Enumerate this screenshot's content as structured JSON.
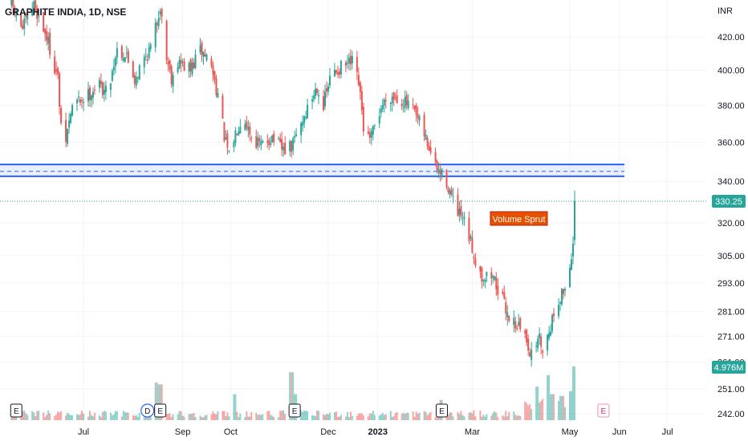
{
  "chart_data": {
    "type": "candlestick",
    "title": "GRAPHITE INDIA, 1D, NSE",
    "currency": "INR",
    "y_ticks": [
      420.0,
      400.0,
      380.0,
      360.0,
      340.0,
      320.0,
      305.0,
      293.0,
      281.0,
      271.0,
      261.0,
      251.0,
      242.0
    ],
    "x_ticks": [
      {
        "label": "Jul",
        "date": "2022-07-01"
      },
      {
        "label": "Sep",
        "date": "2022-09-01"
      },
      {
        "label": "Oct",
        "date": "2022-10-01"
      },
      {
        "label": "Dec",
        "date": "2022-12-01"
      },
      {
        "label": "2023",
        "date": "2023-01-01",
        "bold": true
      },
      {
        "label": "Mar",
        "date": "2023-03-01"
      },
      {
        "label": "May",
        "date": "2023-05-01"
      },
      {
        "label": "Jun",
        "date": "2023-06-01"
      },
      {
        "label": "Jul",
        "date": "2023-07-01"
      }
    ],
    "last_price": "330.25",
    "volume_label": "4.976M",
    "support_zone": {
      "upper": 348.5,
      "lower": 342.5,
      "mid": 345.0
    },
    "annotation": "Volume Sprut",
    "events": [
      {
        "label": "E",
        "date": "2022-05-20"
      },
      {
        "label": "D",
        "date": "2022-08-10"
      },
      {
        "label": "E",
        "date": "2022-08-18"
      },
      {
        "label": "E",
        "date": "2022-11-10"
      },
      {
        "label": "E",
        "date": "2023-02-10"
      },
      {
        "label": "E",
        "date": "2023-05-22"
      }
    ],
    "price_path": [
      [
        "2022-05-17",
        440
      ],
      [
        "2022-05-24",
        425
      ],
      [
        "2022-05-31",
        440
      ],
      [
        "2022-06-08",
        420
      ],
      [
        "2022-06-15",
        395
      ],
      [
        "2022-06-18",
        352
      ],
      [
        "2022-06-24",
        380
      ],
      [
        "2022-07-04",
        386
      ],
      [
        "2022-07-10",
        392
      ],
      [
        "2022-07-16",
        387
      ],
      [
        "2022-07-22",
        413
      ],
      [
        "2022-07-28",
        408
      ],
      [
        "2022-08-02",
        395
      ],
      [
        "2022-08-07",
        405
      ],
      [
        "2022-08-13",
        415
      ],
      [
        "2022-08-18",
        440
      ],
      [
        "2022-08-21",
        412
      ],
      [
        "2022-08-25",
        396
      ],
      [
        "2022-08-29",
        405
      ],
      [
        "2022-09-06",
        400
      ],
      [
        "2022-09-12",
        412
      ],
      [
        "2022-09-18",
        406
      ],
      [
        "2022-09-23",
        386
      ],
      [
        "2022-09-27",
        363
      ],
      [
        "2022-09-30",
        352
      ],
      [
        "2022-10-05",
        368
      ],
      [
        "2022-10-09",
        375
      ],
      [
        "2022-10-14",
        363
      ],
      [
        "2022-10-20",
        358
      ],
      [
        "2022-10-27",
        363
      ],
      [
        "2022-11-02",
        356
      ],
      [
        "2022-11-08",
        357
      ],
      [
        "2022-11-12",
        366
      ],
      [
        "2022-11-18",
        378
      ],
      [
        "2022-11-24",
        391
      ],
      [
        "2022-11-28",
        380
      ],
      [
        "2022-12-03",
        398
      ],
      [
        "2022-12-10",
        402
      ],
      [
        "2022-12-16",
        404
      ],
      [
        "2022-12-20",
        392
      ],
      [
        "2022-12-23",
        368
      ],
      [
        "2022-12-27",
        360
      ],
      [
        "2023-01-03",
        379
      ],
      [
        "2023-01-08",
        386
      ],
      [
        "2023-01-16",
        383
      ],
      [
        "2023-01-23",
        377
      ],
      [
        "2023-01-29",
        366
      ],
      [
        "2023-02-02",
        357
      ],
      [
        "2023-02-06",
        347
      ],
      [
        "2023-02-13",
        340
      ],
      [
        "2023-02-18",
        327
      ],
      [
        "2023-02-25",
        318
      ],
      [
        "2023-03-03",
        303
      ],
      [
        "2023-03-07",
        296
      ],
      [
        "2023-03-14",
        296
      ],
      [
        "2023-03-19",
        287
      ],
      [
        "2023-03-24",
        279
      ],
      [
        "2023-03-30",
        275
      ],
      [
        "2023-04-04",
        270
      ],
      [
        "2023-04-07",
        263
      ],
      [
        "2023-04-11",
        271
      ],
      [
        "2023-04-15",
        266
      ],
      [
        "2023-04-19",
        276
      ],
      [
        "2023-04-24",
        286
      ],
      [
        "2023-04-29",
        292
      ],
      [
        "2023-05-03",
        310
      ],
      [
        "2023-05-04",
        330.25
      ]
    ]
  }
}
